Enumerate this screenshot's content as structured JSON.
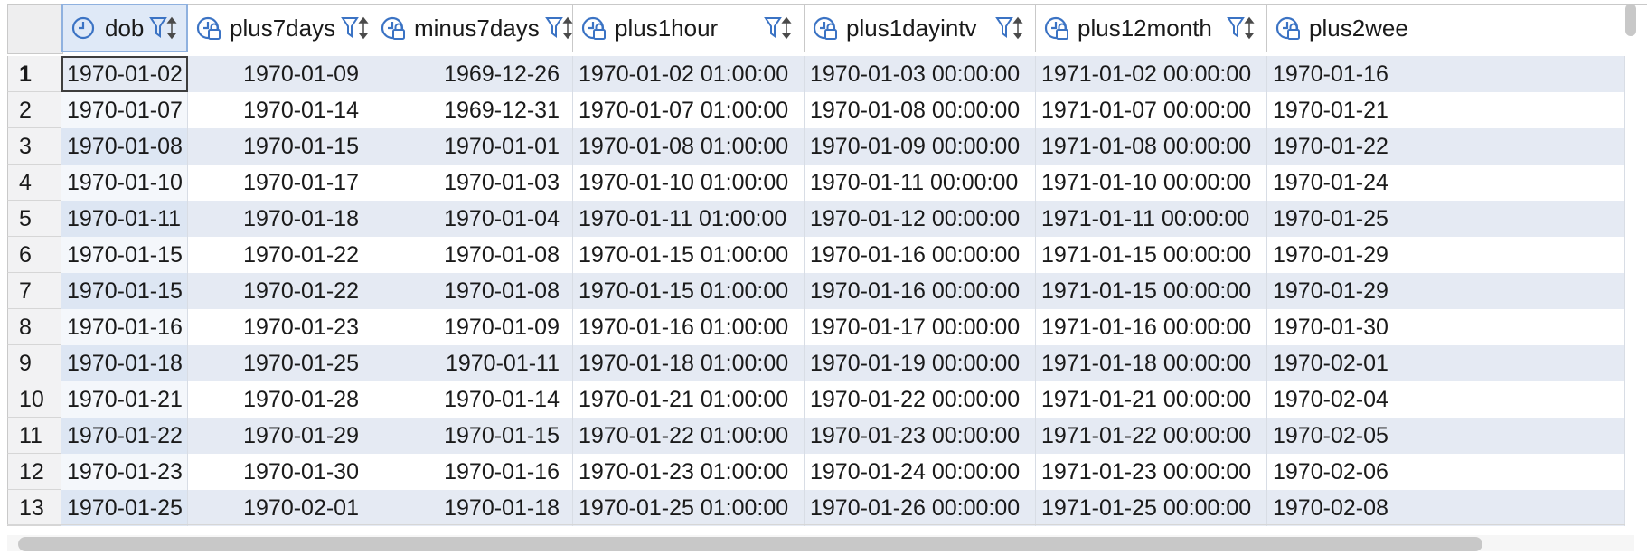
{
  "columns": [
    {
      "name": "dob",
      "icon": "clock-icon"
    },
    {
      "name": "plus7days",
      "icon": "clock-lock-icon"
    },
    {
      "name": "minus7days",
      "icon": "clock-lock-icon"
    },
    {
      "name": "plus1hour",
      "icon": "clock-lock-icon"
    },
    {
      "name": "plus1dayintv",
      "icon": "clock-lock-icon"
    },
    {
      "name": "plus12month",
      "icon": "clock-lock-icon"
    },
    {
      "name": "plus2wee",
      "icon": "clock-lock-icon"
    }
  ],
  "rows": [
    {
      "n": "1",
      "cells": [
        "1970-01-02",
        "1970-01-09",
        "1969-12-26",
        "1970-01-02 01:00:00",
        "1970-01-03 00:00:00",
        "1971-01-02 00:00:00",
        "1970-01-16"
      ]
    },
    {
      "n": "2",
      "cells": [
        "1970-01-07",
        "1970-01-14",
        "1969-12-31",
        "1970-01-07 01:00:00",
        "1970-01-08 00:00:00",
        "1971-01-07 00:00:00",
        "1970-01-21"
      ]
    },
    {
      "n": "3",
      "cells": [
        "1970-01-08",
        "1970-01-15",
        "1970-01-01",
        "1970-01-08 01:00:00",
        "1970-01-09 00:00:00",
        "1971-01-08 00:00:00",
        "1970-01-22"
      ]
    },
    {
      "n": "4",
      "cells": [
        "1970-01-10",
        "1970-01-17",
        "1970-01-03",
        "1970-01-10 01:00:00",
        "1970-01-11 00:00:00",
        "1971-01-10 00:00:00",
        "1970-01-24"
      ]
    },
    {
      "n": "5",
      "cells": [
        "1970-01-11",
        "1970-01-18",
        "1970-01-04",
        "1970-01-11 01:00:00",
        "1970-01-12 00:00:00",
        "1971-01-11 00:00:00",
        "1970-01-25"
      ]
    },
    {
      "n": "6",
      "cells": [
        "1970-01-15",
        "1970-01-22",
        "1970-01-08",
        "1970-01-15 01:00:00",
        "1970-01-16 00:00:00",
        "1971-01-15 00:00:00",
        "1970-01-29"
      ]
    },
    {
      "n": "7",
      "cells": [
        "1970-01-15",
        "1970-01-22",
        "1970-01-08",
        "1970-01-15 01:00:00",
        "1970-01-16 00:00:00",
        "1971-01-15 00:00:00",
        "1970-01-29"
      ]
    },
    {
      "n": "8",
      "cells": [
        "1970-01-16",
        "1970-01-23",
        "1970-01-09",
        "1970-01-16 01:00:00",
        "1970-01-17 00:00:00",
        "1971-01-16 00:00:00",
        "1970-01-30"
      ]
    },
    {
      "n": "9",
      "cells": [
        "1970-01-18",
        "1970-01-25",
        "1970-01-11",
        "1970-01-18 01:00:00",
        "1970-01-19 00:00:00",
        "1971-01-18 00:00:00",
        "1970-02-01"
      ]
    },
    {
      "n": "10",
      "cells": [
        "1970-01-21",
        "1970-01-28",
        "1970-01-14",
        "1970-01-21 01:00:00",
        "1970-01-22 00:00:00",
        "1971-01-21 00:00:00",
        "1970-02-04"
      ]
    },
    {
      "n": "11",
      "cells": [
        "1970-01-22",
        "1970-01-29",
        "1970-01-15",
        "1970-01-22 01:00:00",
        "1970-01-23 00:00:00",
        "1971-01-22 00:00:00",
        "1970-02-05"
      ]
    },
    {
      "n": "12",
      "cells": [
        "1970-01-23",
        "1970-01-30",
        "1970-01-16",
        "1970-01-23 01:00:00",
        "1970-01-24 00:00:00",
        "1971-01-23 00:00:00",
        "1970-02-06"
      ]
    },
    {
      "n": "13",
      "cells": [
        "1970-01-25",
        "1970-02-01",
        "1970-01-18",
        "1970-01-25 01:00:00",
        "1970-01-26 00:00:00",
        "1971-01-25 00:00:00",
        "1970-02-08"
      ]
    }
  ],
  "selected_column": 0,
  "active_row": 0,
  "colors": {
    "header_selected": "#dfe9f7",
    "row_alt": "#e5eaf3",
    "icon_blue": "#3b73c4"
  }
}
